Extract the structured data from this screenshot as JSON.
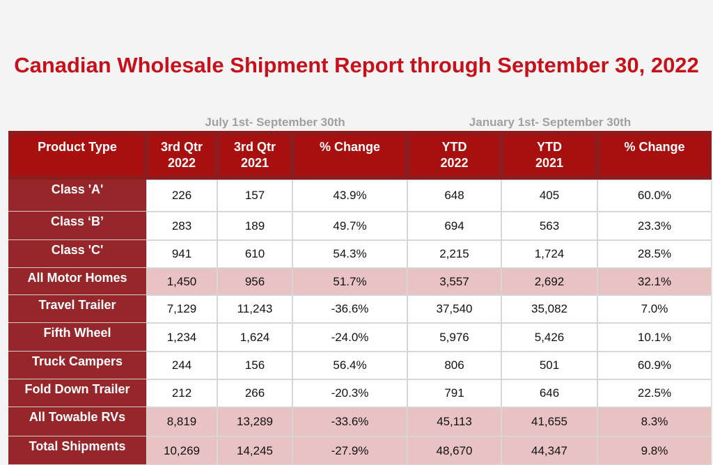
{
  "title": "Canadian Wholesale Shipment Report through September 30, 2022",
  "table": {
    "groups": [
      "July 1st- September 30th",
      "January 1st- September 30th"
    ],
    "header": [
      "Product Type",
      "3rd Qtr\n2022",
      "3rd Qtr\n2021",
      "% Change",
      "YTD\n2022",
      "YTD\n2021",
      "% Change"
    ],
    "rows": [
      [
        "Class 'A'",
        "226",
        "157",
        "43.9%",
        "648",
        "405",
        "60.0%"
      ],
      [
        "Class ‘B’",
        "283",
        "189",
        "49.7%",
        "694",
        "563",
        "23.3%"
      ],
      [
        "Class 'C'",
        "941",
        "610",
        "54.3%",
        "2,215",
        "1,724",
        "28.5%"
      ],
      [
        "All Motor Homes",
        "1,450",
        "956",
        "51.7%",
        "3,557",
        "2,692",
        "32.1%"
      ],
      [
        "Travel Trailer",
        "7,129",
        "11,243",
        "-36.6%",
        "37,540",
        "35,082",
        "7.0%"
      ],
      [
        "Fifth Wheel",
        "1,234",
        "1,624",
        "-24.0%",
        "5,976",
        "5,426",
        "10.1%"
      ],
      [
        "Truck Campers",
        "244",
        "156",
        "56.4%",
        "806",
        "501",
        "60.9%"
      ],
      [
        "Fold Down Trailer",
        "212",
        "266",
        "-20.3%",
        "791",
        "646",
        "22.5%"
      ],
      [
        "All Towable RVs",
        "8,819",
        "13,289",
        "-33.6%",
        "45,113",
        "41,655",
        "8.3%"
      ],
      [
        "Total Shipments",
        "10,269",
        "14,245",
        "-27.9%",
        "48,670",
        "44,347",
        "9.8%"
      ]
    ]
  }
}
